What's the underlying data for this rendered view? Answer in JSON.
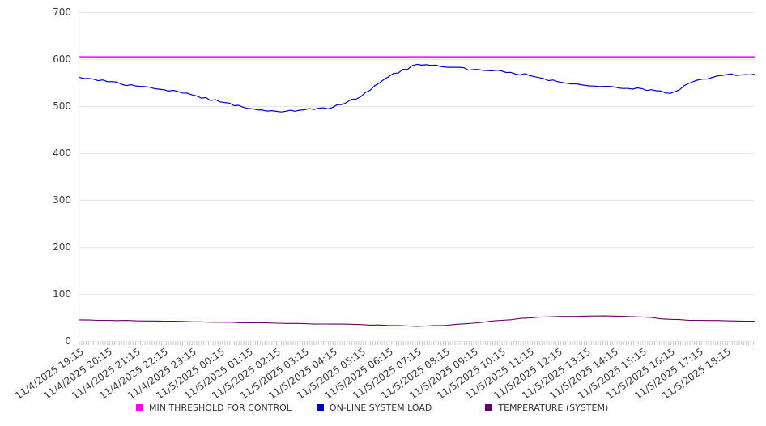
{
  "chart_data": {
    "type": "line",
    "title": "",
    "categories": [
      "11/4/2025 19:15",
      "11/4/2025 20:15",
      "11/4/2025 21:15",
      "11/4/2025 22:15",
      "11/4/2025 23:15",
      "11/5/2025 00:15",
      "11/5/2025 01:15",
      "11/5/2025 02:15",
      "11/5/2025 03:15",
      "11/5/2025 04:15",
      "11/5/2025 05:15",
      "11/5/2025 06:15",
      "11/5/2025 07:15",
      "11/5/2025 08:15",
      "11/5/2025 09:15",
      "11/5/2025 10:15",
      "11/5/2025 11:15",
      "11/5/2025 12:15",
      "11/5/2025 13:15",
      "11/5/2025 14:15",
      "11/5/2025 15:15",
      "11/5/2025 16:15",
      "11/5/2025 17:15",
      "11/5/2025 18:15"
    ],
    "series": [
      {
        "name": "MIN THRESHOLD FOR CONTROL",
        "color": "#FF00FF",
        "values": [
          605,
          605,
          605,
          605,
          605,
          605,
          605,
          605,
          605,
          605,
          605,
          605,
          605,
          605,
          605,
          605,
          605,
          605,
          605,
          605,
          605,
          605,
          605,
          605,
          605
        ]
      },
      {
        "name": "ON-LINE SYSTEM LOAD",
        "color": "#0000CC",
        "values": [
          561,
          552,
          543,
          535,
          524,
          509,
          495,
          489,
          492,
          497,
          520,
          563,
          589,
          583,
          578,
          575,
          565,
          552,
          544,
          541,
          537,
          527,
          556,
          567,
          568
        ]
      },
      {
        "name": "TEMPERATURE (SYSTEM)",
        "color": "#660066",
        "values": [
          45,
          44,
          43,
          42,
          41,
          40,
          39,
          38,
          37,
          36,
          35,
          33,
          31,
          33,
          38,
          44,
          49,
          52,
          53,
          53,
          51,
          46,
          44,
          43,
          42
        ]
      }
    ],
    "ylim": [
      0,
      700
    ],
    "yticks": [
      0,
      100,
      200,
      300,
      400,
      500,
      600,
      700
    ],
    "grid": "horizontal",
    "legend_position": "bottom",
    "note": "series sampled hourly at each x label plus one trailing point at the unlabeled right edge of the plot"
  }
}
